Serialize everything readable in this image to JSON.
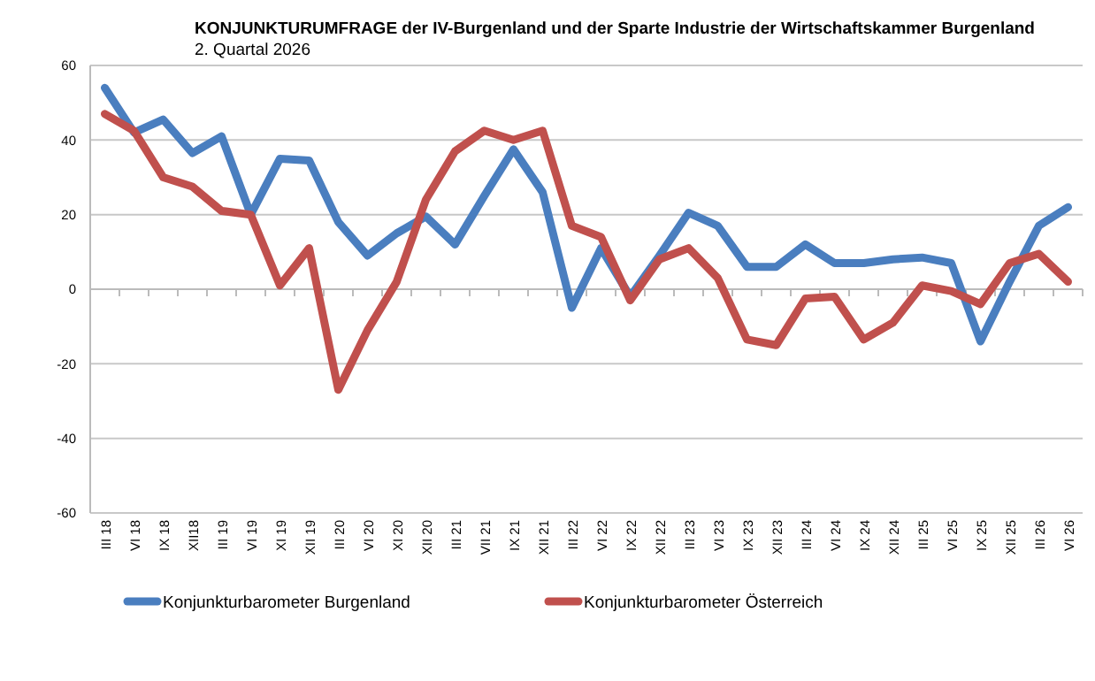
{
  "chart_data": {
    "type": "line",
    "title": "KONJUNKTURUMFRAGE der IV-Burgenland und der Sparte Industrie der Wirtschaftskammer Burgenland",
    "subtitle": "2. Quartal 2026",
    "categories": [
      "III 18",
      "VI 18",
      "IX 18",
      "XII18",
      "III 19",
      "VI 19",
      "XI 19",
      "XII 19",
      "III 20",
      "VI 20",
      "XI 20",
      "XII 20",
      "III 21",
      "VII 21",
      "IX 21",
      "XII 21",
      "III 22",
      "VI 22",
      "IX 22",
      "XII 22",
      "III 23",
      "VI 23",
      "IX 23",
      "XII 23",
      "III 24",
      "VI 24",
      "IX 24",
      "XII 24",
      "III 25",
      "VI 25",
      "IX 25",
      "XII 25",
      "III 26",
      "VI 26"
    ],
    "series": [
      {
        "name": "Konjunkturbarometer Burgenland",
        "color": "#4a7ebf",
        "values": [
          54,
          42,
          45.5,
          36.5,
          41,
          20,
          35,
          34.5,
          18,
          9,
          15,
          19.5,
          12,
          25,
          37.5,
          26,
          -5,
          11,
          -2,
          9,
          20.5,
          17,
          6,
          6,
          12,
          7,
          7,
          8,
          8.5,
          7,
          -14,
          2,
          17,
          22
        ]
      },
      {
        "name": "Konjunkturbarometer Österreich",
        "color": "#c0504d",
        "values": [
          47,
          42.5,
          30,
          27.5,
          21,
          20,
          1,
          11,
          -27,
          -11,
          2,
          24,
          37,
          42.5,
          40,
          42.5,
          17,
          14,
          -3,
          8,
          11,
          3,
          -13.5,
          -15,
          -2.5,
          -2,
          -13.5,
          -9,
          1,
          -0.5,
          -4,
          7,
          9.5,
          2
        ]
      }
    ],
    "ylim": [
      -60,
      60
    ],
    "yticks": [
      -60,
      -40,
      -20,
      0,
      20,
      40,
      60
    ],
    "grid": "y",
    "legend": "bottom",
    "marker": "none",
    "line_style": "solid"
  }
}
